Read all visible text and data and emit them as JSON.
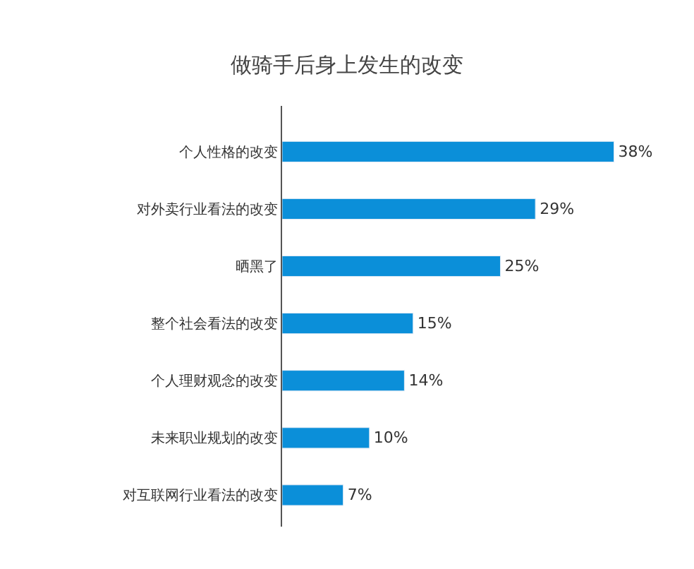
{
  "chart_data": {
    "type": "bar",
    "orientation": "horizontal",
    "title": "做骑手后身上发生的改变",
    "categories": [
      "个人性格的改变",
      "对外卖行业看法的改变",
      "晒黑了",
      "整个社会看法的改变",
      "个人理财观念的改变",
      "未来职业规划的改变",
      "对互联网行业看法的改变"
    ],
    "values": [
      38,
      29,
      25,
      15,
      14,
      10,
      7
    ],
    "value_labels": [
      "38%",
      "29%",
      "25%",
      "15%",
      "14%",
      "10%",
      "7%"
    ],
    "color": "#0b8fd9"
  }
}
